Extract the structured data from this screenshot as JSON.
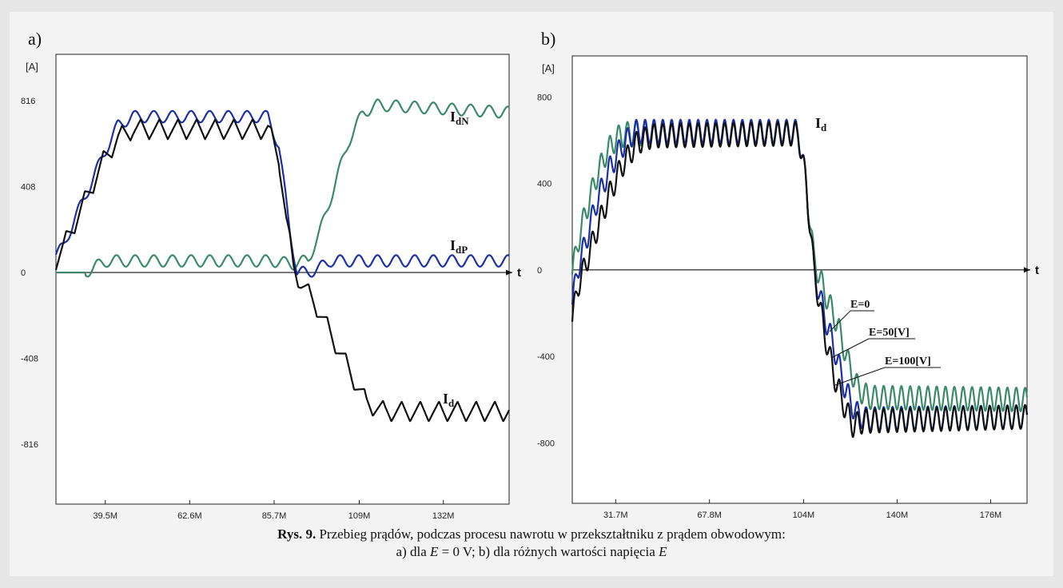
{
  "panels": {
    "a": {
      "letter": "a)"
    },
    "b": {
      "letter": "b)"
    }
  },
  "caption": {
    "label": "Rys. 9.",
    "line1": " Przebieg prądów, podczas procesu nawrotu w przekształtniku z prądem obwodowym:",
    "line2_a": "a) dla ",
    "line2_E1": "E",
    "line2_b": " = 0 V; b) dla różnych wartości napięcia ",
    "line2_E2": "E"
  },
  "chart_data": [
    {
      "type": "line",
      "unit": "[A]",
      "x_axis_name": "t",
      "x_ticks": [
        "39.5M",
        "62.6M",
        "85.7M",
        "109M",
        "132M"
      ],
      "x_tick_values": [
        39.5,
        62.6,
        85.7,
        109,
        132
      ],
      "xlim": [
        26,
        150
      ],
      "y_ticks": [
        "816",
        "408",
        "0",
        "-408",
        "-816"
      ],
      "y_tick_values": [
        816,
        408,
        0,
        -408,
        -816
      ],
      "ylim": [
        -1100,
        1036
      ],
      "colors": {
        "black": "#111111",
        "blue": "#1b2fa8",
        "green": "#3a8a68"
      },
      "series": [
        {
          "color": "green",
          "ripple_amp": 55,
          "ripple_period": 5.1,
          "ripple_shape": "wave",
          "points": [
            [
              26,
              0
            ],
            [
              34,
              0
            ],
            [
              37,
              30
            ],
            [
              40,
              55
            ],
            [
              44,
              55
            ],
            [
              85,
              55
            ],
            [
              91,
              40
            ],
            [
              95,
              60
            ],
            [
              98,
              180
            ],
            [
              102,
              400
            ],
            [
              106,
              620
            ],
            [
              110,
              760
            ],
            [
              114,
              795
            ],
            [
              150,
              760
            ]
          ]
        },
        {
          "name": "IdP",
          "color": "blue",
          "ripple_amp": 55,
          "ripple_period": 5.1,
          "ripple_shape": "wave",
          "points": [
            [
              26,
              85
            ],
            [
              28,
              120
            ],
            [
              31,
              250
            ],
            [
              35,
              400
            ],
            [
              39,
              560
            ],
            [
              43,
              700
            ],
            [
              47,
              740
            ],
            [
              84,
              740
            ],
            [
              87,
              600
            ],
            [
              90,
              200
            ],
            [
              92,
              0
            ],
            [
              95,
              0
            ],
            [
              98,
              20
            ],
            [
              101,
              55
            ],
            [
              150,
              55
            ]
          ]
        },
        {
          "name": "Id",
          "color": "black",
          "ripple_amp": 95,
          "ripple_period": 5.1,
          "ripple_shape": "saw",
          "points": [
            [
              26,
              60
            ],
            [
              28,
              120
            ],
            [
              31,
              230
            ],
            [
              35,
              380
            ],
            [
              39,
              530
            ],
            [
              43,
              640
            ],
            [
              47,
              680
            ],
            [
              84,
              680
            ],
            [
              87,
              550
            ],
            [
              89,
              250
            ],
            [
              91,
              30
            ],
            [
              93,
              -50
            ],
            [
              97,
              -150
            ],
            [
              102,
              -320
            ],
            [
              107,
              -490
            ],
            [
              111,
              -620
            ],
            [
              116,
              -660
            ],
            [
              150,
              -660
            ]
          ]
        }
      ],
      "curve_labels": [
        {
          "main": "I",
          "sub": "dN"
        },
        {
          "main": "I",
          "sub": "dP"
        },
        {
          "main": "I",
          "sub": "d"
        }
      ]
    },
    {
      "type": "line",
      "unit": "[A]",
      "x_axis_name": "t",
      "x_ticks": [
        "31.7M",
        "67.8M",
        "104M",
        "140M",
        "176M"
      ],
      "x_tick_values": [
        31.7,
        67.8,
        104,
        140,
        176
      ],
      "xlim": [
        15,
        190
      ],
      "y_ticks": [
        "800",
        "400",
        "0",
        "-400",
        "-800"
      ],
      "y_tick_values": [
        800,
        400,
        0,
        -400,
        -800
      ],
      "ylim": [
        -1080,
        990
      ],
      "colors": {
        "black": "#111111",
        "blue": "#1b2fa8",
        "green": "#3a8a68"
      },
      "series": [
        {
          "name": "E=0",
          "color": "green",
          "ripple_amp": 110,
          "ripple_period": 3.4,
          "ripple_shape": "wave",
          "points": [
            [
              15,
              -20
            ],
            [
              17,
              120
            ],
            [
              20,
              260
            ],
            [
              24,
              420
            ],
            [
              28,
              540
            ],
            [
              32,
              610
            ],
            [
              36,
              630
            ],
            [
              102,
              630
            ],
            [
              105,
              400
            ],
            [
              108,
              50
            ],
            [
              112,
              -100
            ],
            [
              117,
              -250
            ],
            [
              121,
              -420
            ],
            [
              125,
              -550
            ],
            [
              129,
              -590
            ],
            [
              190,
              -600
            ]
          ]
        },
        {
          "name": "E=50[V]",
          "color": "blue",
          "ripple_amp": 110,
          "ripple_period": 3.4,
          "ripple_shape": "wave",
          "points": [
            [
              15,
              -160
            ],
            [
              17,
              0
            ],
            [
              20,
              120
            ],
            [
              24,
              300
            ],
            [
              29,
              460
            ],
            [
              34,
              570
            ],
            [
              39,
              640
            ],
            [
              102,
              640
            ],
            [
              105,
              400
            ],
            [
              108,
              0
            ],
            [
              112,
              -210
            ],
            [
              116,
              -370
            ],
            [
              120,
              -550
            ],
            [
              124,
              -660
            ],
            [
              128,
              -690
            ],
            [
              190,
              -680
            ]
          ]
        },
        {
          "name": "E=100[V]",
          "color": "black",
          "ripple_amp": 110,
          "ripple_period": 3.4,
          "ripple_shape": "wave",
          "points": [
            [
              15,
              -240
            ],
            [
              17,
              -80
            ],
            [
              20,
              20
            ],
            [
              24,
              170
            ],
            [
              29,
              340
            ],
            [
              34,
              480
            ],
            [
              40,
              590
            ],
            [
              46,
              620
            ],
            [
              102,
              630
            ],
            [
              105,
              400
            ],
            [
              108,
              0
            ],
            [
              112,
              -290
            ],
            [
              116,
              -500
            ],
            [
              120,
              -640
            ],
            [
              123,
              -720
            ],
            [
              127,
              -700
            ],
            [
              190,
              -680
            ]
          ]
        }
      ],
      "curve_labels": [
        {
          "main": "I",
          "sub": "d"
        },
        {
          "main": "E=0",
          "sub": ""
        },
        {
          "main": "E=50[V]",
          "sub": ""
        },
        {
          "main": "E=100[V]",
          "sub": ""
        }
      ]
    }
  ]
}
